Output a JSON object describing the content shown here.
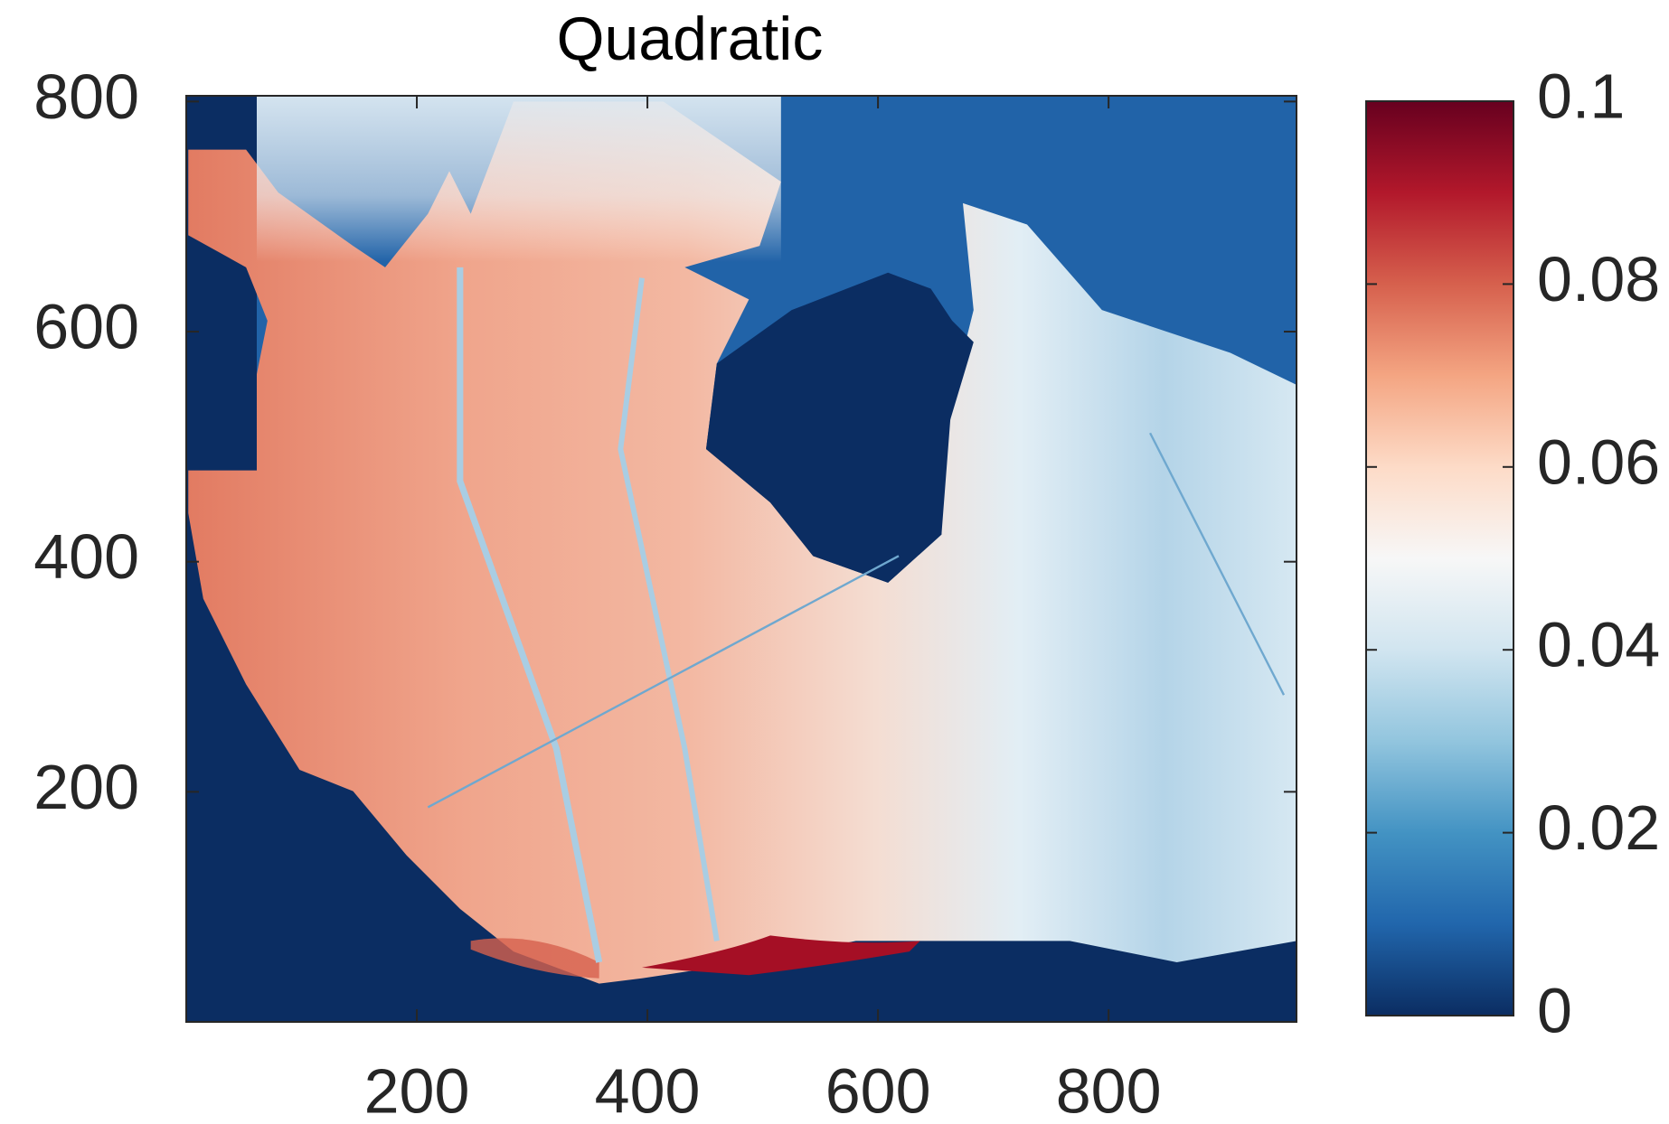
{
  "chart_data": {
    "type": "heatmap",
    "title": "Quadratic",
    "xlim": [
      0,
      963
    ],
    "xticks": [
      200,
      400,
      600,
      800
    ],
    "ylim": [
      0,
      805
    ],
    "yticks": [
      200,
      400,
      600,
      800
    ],
    "clim": [
      0,
      0.1
    ],
    "cticks": [
      0,
      0.02,
      0.04,
      0.06,
      0.08,
      0.1
    ],
    "colormap": [
      "#0b2d62",
      "#2166ac",
      "#4393c3",
      "#92c5de",
      "#d1e5f0",
      "#f7f7f7",
      "#fddbc7",
      "#f4a582",
      "#d6604d",
      "#b2182b",
      "#67001f"
    ],
    "grid": false
  }
}
